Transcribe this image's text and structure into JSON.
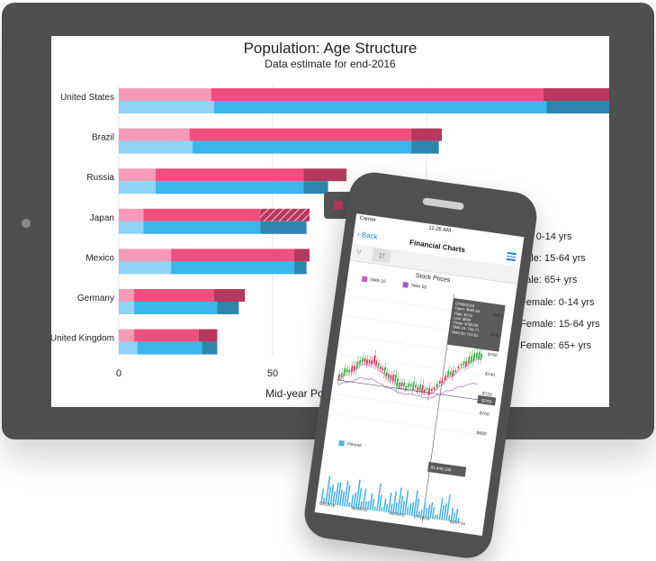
{
  "chart_data": {
    "type": "bar",
    "title": "Population: Age Structure",
    "subtitle": "Data estimate for end-2016",
    "xlabel": "Mid-year Po",
    "x_ticks": [
      "0",
      "50"
    ],
    "xlim": [
      0,
      170
    ],
    "categories": [
      "United States",
      "Brazil",
      "Russia",
      "Japan",
      "Mexico",
      "Germany",
      "United Kingdom"
    ],
    "series": [
      {
        "name": "Male: 0-14 yrs",
        "color": "#8fd3f5",
        "values": [
          31,
          24,
          12,
          8,
          17,
          5,
          6
        ]
      },
      {
        "name": "Male: 15-64 yrs",
        "color": "#3bb5ea",
        "values": [
          108,
          71,
          48,
          38,
          40,
          27,
          21
        ]
      },
      {
        "name": "Male: 65+ yrs",
        "color": "#2e86b0",
        "values": [
          21,
          9,
          8,
          15,
          4,
          7,
          5
        ]
      },
      {
        "name": "Female: 0-14 yrs",
        "color": "#f59ab8",
        "values": [
          30,
          23,
          12,
          8,
          17,
          5,
          5
        ]
      },
      {
        "name": "Female: 15-64 yrs",
        "color": "#ef4e7e",
        "values": [
          108,
          72,
          48,
          38,
          40,
          26,
          21
        ]
      },
      {
        "name": "Female: 65+ yrs",
        "color": "#b7385e",
        "values": [
          29,
          10,
          14,
          16,
          5,
          10,
          6
        ]
      }
    ],
    "highlighted": {
      "country": "Japan",
      "series": "Female: 65+ yrs"
    }
  },
  "legend": [
    {
      "label": "ale: 0-14 yrs",
      "color": "#8fd3f5"
    },
    {
      "label": "Male: 15-64 yrs",
      "color": "#3bb5ea"
    },
    {
      "label": "Male: 65+ yrs",
      "color": "#2e86b0"
    },
    {
      "label": "Female: 0-14 yrs",
      "color": "#f59ab8"
    },
    {
      "label": "Female: 15-64 yrs",
      "color": "#ef4e7e"
    },
    {
      "label": "Female: 65+ yrs",
      "color": "#b7385e"
    }
  ],
  "phone": {
    "status_carrier": "Carrier",
    "status_time": "11:26 AM",
    "back_label": "Back",
    "title": "Financial Charts",
    "tool_label": "1f",
    "chart_title": "Stock Prices",
    "sma1": "SMA 10",
    "sma2": "SMA 50",
    "sma1_color": "#e052b8",
    "sma2_color": "#9b59c4",
    "tooltip": [
      "07/06/2016",
      "Open: $695.64",
      "High: $713",
      "Low: $694",
      "Close: $706.00",
      "SMA 10: 704.71",
      "SMA 50: 723.01"
    ],
    "price_labels": [
      "$800",
      "$780",
      "$760",
      "$740",
      "$720",
      "$700",
      "$680"
    ],
    "price_marker": "$709",
    "volume_label": "Volume",
    "volume_tip": "$1,440,100",
    "dates": [
      "05/10/16",
      "06/08/16",
      "06/09/16",
      "07/18/16",
      "08/07/16"
    ]
  }
}
